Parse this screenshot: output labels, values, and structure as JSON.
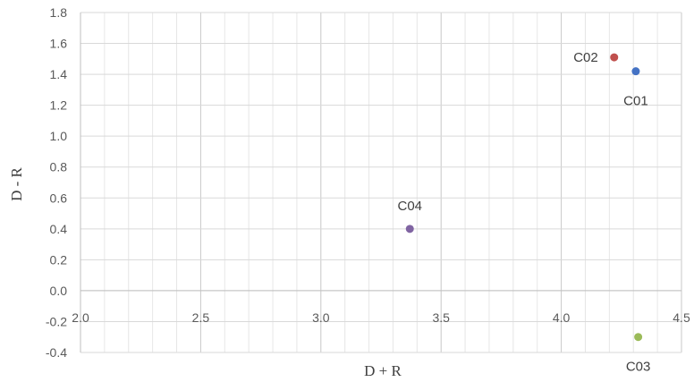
{
  "chart_data": {
    "type": "scatter",
    "xlabel": "D + R",
    "ylabel": "D - R",
    "xlim": [
      2.0,
      4.5
    ],
    "ylim": [
      -0.4,
      1.8
    ],
    "x_ticks": [
      "2.0",
      "2.5",
      "3.0",
      "3.5",
      "4.0",
      "4.5"
    ],
    "y_ticks": [
      "1.8",
      "1.6",
      "1.4",
      "1.2",
      "1.0",
      "0.8",
      "0.6",
      "0.4",
      "0.2",
      "0.0",
      "-0.2",
      "-0.4"
    ],
    "grid": true,
    "points": [
      {
        "label": "C01",
        "x": 4.31,
        "y": 1.42,
        "color": "#4472c4",
        "label_pos": "below"
      },
      {
        "label": "C02",
        "x": 4.22,
        "y": 1.51,
        "color": "#c0504d",
        "label_pos": "left"
      },
      {
        "label": "C03",
        "x": 4.32,
        "y": -0.3,
        "color": "#9bbb59",
        "label_pos": "below"
      },
      {
        "label": "C04",
        "x": 3.37,
        "y": 0.4,
        "color": "#8064a2",
        "label_pos": "above"
      }
    ]
  }
}
